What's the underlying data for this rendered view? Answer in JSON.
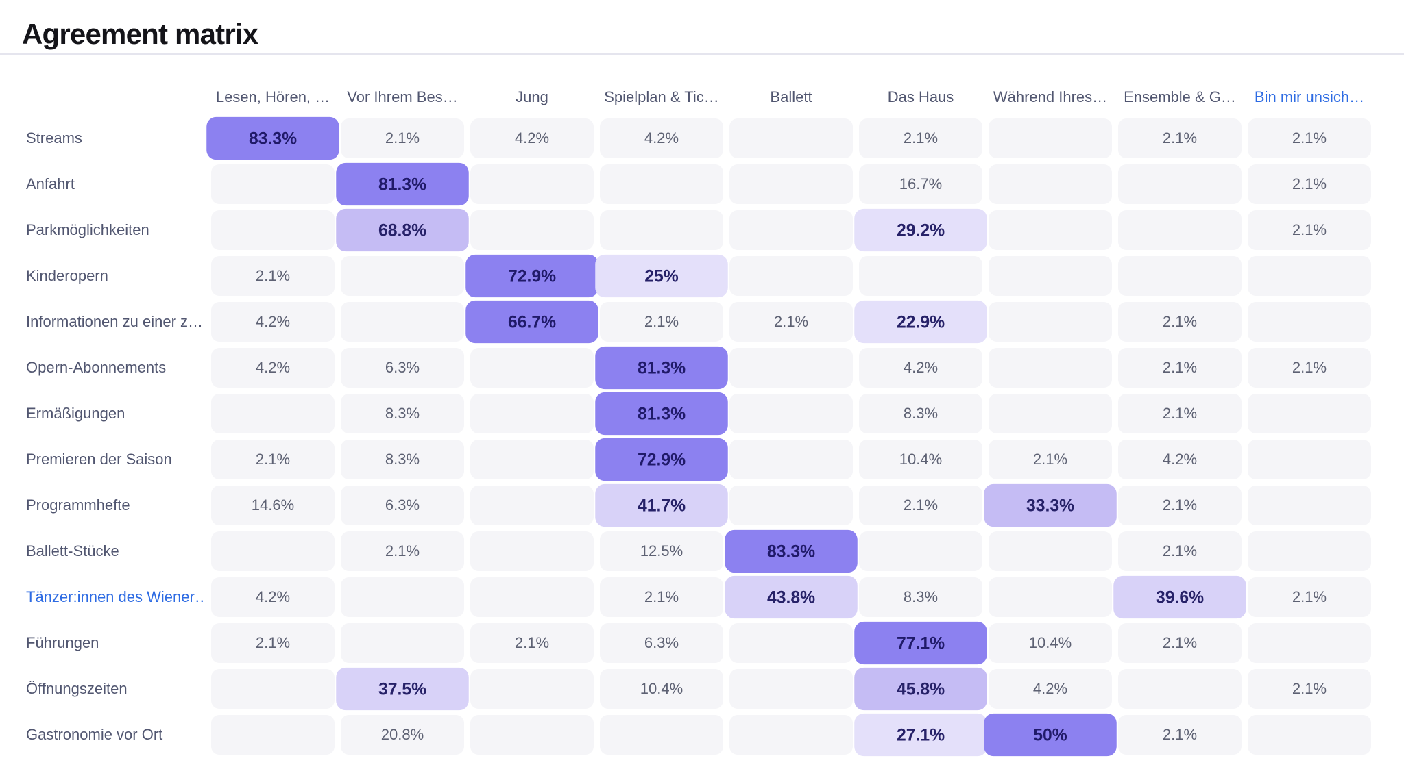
{
  "page": {
    "title": "Agreement matrix"
  },
  "palette": {
    "title_text": "#141419",
    "divider": "#e5e5ee",
    "header_text": "#515670",
    "cell_text": "#5d6173",
    "cell_bg": "#f5f5f8",
    "highlight_text": "#262168",
    "tone_dark": "#8c81f0",
    "tone_medium": "#c5bcf4",
    "tone_light": "#d8d2f8",
    "tone_xlight": "#e4e0fa",
    "link_blue": "#2d6be3"
  },
  "chart_data": {
    "type": "heatmap",
    "title": "Agreement matrix",
    "legend_position": "none",
    "grid": false,
    "value_unit": "%",
    "tone_meaning": "cell shade encodes agreement strength (dark = strongest)",
    "columns": [
      {
        "label": "Lesen, Hören, …",
        "highlighted": false
      },
      {
        "label": "Vor Ihrem Bes…",
        "highlighted": false
      },
      {
        "label": "Jung",
        "highlighted": false
      },
      {
        "label": "Spielplan & Tic…",
        "highlighted": false
      },
      {
        "label": "Ballett",
        "highlighted": false
      },
      {
        "label": "Das Haus",
        "highlighted": false
      },
      {
        "label": "Während Ihres…",
        "highlighted": false
      },
      {
        "label": "Ensemble & G…",
        "highlighted": false
      },
      {
        "label": "Bin mir unsich…",
        "highlighted": true
      }
    ],
    "rows": [
      {
        "label": "Streams",
        "highlighted": false,
        "cells": [
          {
            "v": "83.3%",
            "tone": "dark"
          },
          {
            "v": "2.1%"
          },
          {
            "v": "4.2%"
          },
          {
            "v": "4.2%"
          },
          null,
          {
            "v": "2.1%"
          },
          null,
          {
            "v": "2.1%"
          },
          {
            "v": "2.1%"
          }
        ]
      },
      {
        "label": "Anfahrt",
        "highlighted": false,
        "cells": [
          null,
          {
            "v": "81.3%",
            "tone": "dark"
          },
          null,
          null,
          null,
          {
            "v": "16.7%"
          },
          null,
          null,
          {
            "v": "2.1%"
          }
        ]
      },
      {
        "label": "Parkmöglichkeiten",
        "highlighted": false,
        "cells": [
          null,
          {
            "v": "68.8%",
            "tone": "medium"
          },
          null,
          null,
          null,
          {
            "v": "29.2%",
            "tone": "xlight"
          },
          null,
          null,
          {
            "v": "2.1%"
          }
        ]
      },
      {
        "label": "Kinderopern",
        "highlighted": false,
        "cells": [
          {
            "v": "2.1%"
          },
          null,
          {
            "v": "72.9%",
            "tone": "dark"
          },
          {
            "v": "25%",
            "tone": "xlight"
          },
          null,
          null,
          null,
          null,
          null
        ]
      },
      {
        "label": "Informationen zu einer z…",
        "highlighted": false,
        "cells": [
          {
            "v": "4.2%"
          },
          null,
          {
            "v": "66.7%",
            "tone": "dark"
          },
          {
            "v": "2.1%"
          },
          {
            "v": "2.1%"
          },
          {
            "v": "22.9%",
            "tone": "xlight"
          },
          null,
          {
            "v": "2.1%"
          },
          null
        ]
      },
      {
        "label": "Opern-Abonnements",
        "highlighted": false,
        "cells": [
          {
            "v": "4.2%"
          },
          {
            "v": "6.3%"
          },
          null,
          {
            "v": "81.3%",
            "tone": "dark"
          },
          null,
          {
            "v": "4.2%"
          },
          null,
          {
            "v": "2.1%"
          },
          {
            "v": "2.1%"
          }
        ]
      },
      {
        "label": "Ermäßigungen",
        "highlighted": false,
        "cells": [
          null,
          {
            "v": "8.3%"
          },
          null,
          {
            "v": "81.3%",
            "tone": "dark"
          },
          null,
          {
            "v": "8.3%"
          },
          null,
          {
            "v": "2.1%"
          },
          null
        ]
      },
      {
        "label": "Premieren der Saison",
        "highlighted": false,
        "cells": [
          {
            "v": "2.1%"
          },
          {
            "v": "8.3%"
          },
          null,
          {
            "v": "72.9%",
            "tone": "dark"
          },
          null,
          {
            "v": "10.4%"
          },
          {
            "v": "2.1%"
          },
          {
            "v": "4.2%"
          },
          null
        ]
      },
      {
        "label": "Programmhefte",
        "highlighted": false,
        "cells": [
          {
            "v": "14.6%"
          },
          {
            "v": "6.3%"
          },
          null,
          {
            "v": "41.7%",
            "tone": "light"
          },
          null,
          {
            "v": "2.1%"
          },
          {
            "v": "33.3%",
            "tone": "medium"
          },
          {
            "v": "2.1%"
          },
          null
        ]
      },
      {
        "label": "Ballett-Stücke",
        "highlighted": false,
        "cells": [
          null,
          {
            "v": "2.1%"
          },
          null,
          {
            "v": "12.5%"
          },
          {
            "v": "83.3%",
            "tone": "dark"
          },
          null,
          null,
          {
            "v": "2.1%"
          },
          null
        ]
      },
      {
        "label": "Tänzer:innen des Wiener…",
        "highlighted": true,
        "cells": [
          {
            "v": "4.2%"
          },
          null,
          null,
          {
            "v": "2.1%"
          },
          {
            "v": "43.8%",
            "tone": "light"
          },
          {
            "v": "8.3%"
          },
          null,
          {
            "v": "39.6%",
            "tone": "light"
          },
          {
            "v": "2.1%"
          }
        ]
      },
      {
        "label": "Führungen",
        "highlighted": false,
        "cells": [
          {
            "v": "2.1%"
          },
          null,
          {
            "v": "2.1%"
          },
          {
            "v": "6.3%"
          },
          null,
          {
            "v": "77.1%",
            "tone": "dark"
          },
          {
            "v": "10.4%"
          },
          {
            "v": "2.1%"
          },
          null
        ]
      },
      {
        "label": "Öffnungszeiten",
        "highlighted": false,
        "cells": [
          null,
          {
            "v": "37.5%",
            "tone": "light"
          },
          null,
          {
            "v": "10.4%"
          },
          null,
          {
            "v": "45.8%",
            "tone": "medium"
          },
          {
            "v": "4.2%"
          },
          null,
          {
            "v": "2.1%"
          }
        ]
      },
      {
        "label": "Gastronomie vor Ort",
        "highlighted": false,
        "cells": [
          null,
          {
            "v": "20.8%"
          },
          null,
          null,
          null,
          {
            "v": "27.1%",
            "tone": "xlight"
          },
          {
            "v": "50%",
            "tone": "dark"
          },
          {
            "v": "2.1%"
          },
          null
        ]
      }
    ]
  }
}
